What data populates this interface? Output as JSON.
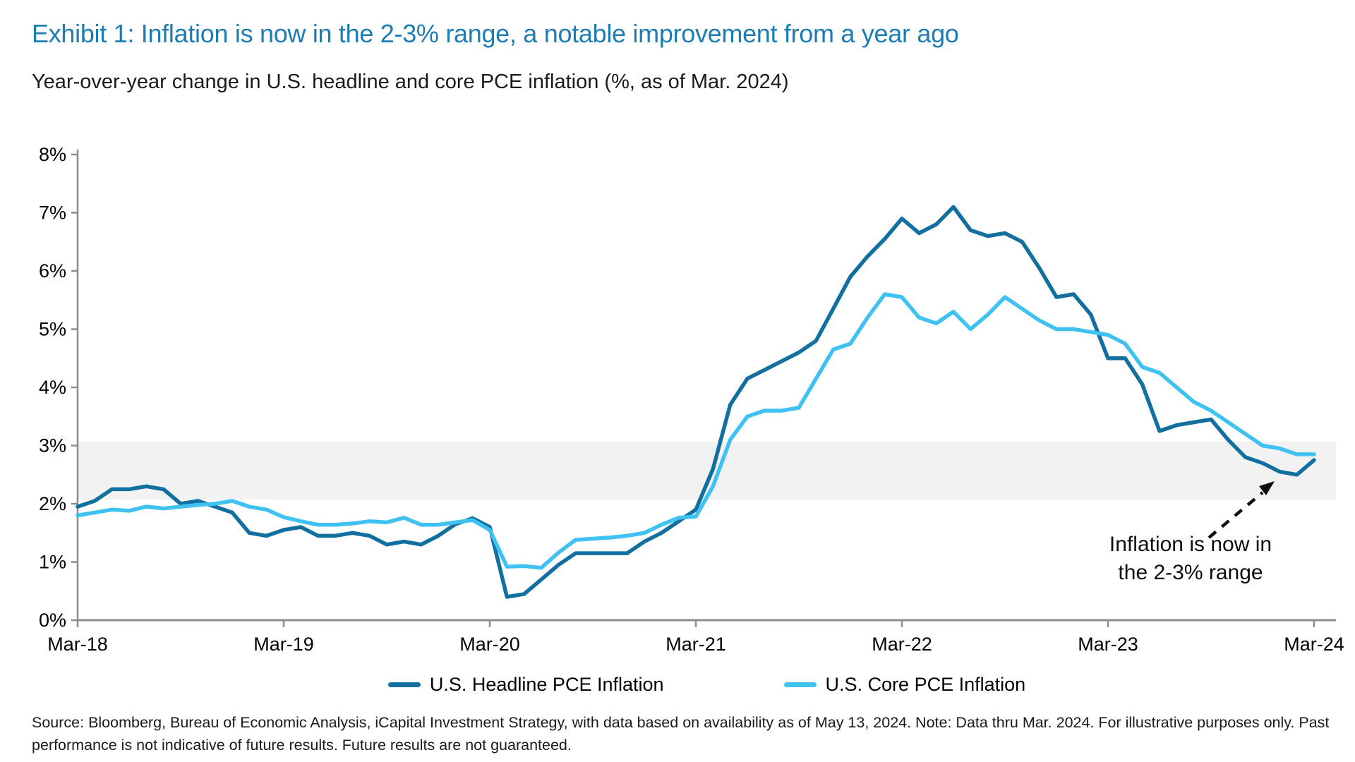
{
  "header": {
    "title": "Exhibit 1: Inflation is now in the 2-3% range, a notable improvement from a year ago",
    "subtitle": "Year-over-year change in U.S. headline and core PCE inflation (%, as of Mar. 2024)"
  },
  "chart_data": {
    "type": "line",
    "frequency": "monthly",
    "x_start": "Mar-2018",
    "x_end": "Mar-2024",
    "x_tick_labels": [
      "Mar-18",
      "Mar-19",
      "Mar-20",
      "Mar-21",
      "Mar-22",
      "Mar-23",
      "Mar-24"
    ],
    "y_tick_labels_top_down": [
      "8%",
      "7%",
      "6%",
      "5%",
      "4%",
      "3%",
      "2%",
      "1%",
      "0%"
    ],
    "ylim": [
      0,
      8
    ],
    "grid": false,
    "legend_position": "bottom",
    "highlight_band": {
      "label": "2-3% range",
      "from": 2.07,
      "to": 3.07,
      "color": "#f2f2f2"
    },
    "axis_color": "#8c8c8c",
    "series": [
      {
        "name": "U.S. Headline PCE Inflation",
        "color": "#1170a0",
        "values": [
          1.95,
          2.05,
          2.25,
          2.25,
          2.3,
          2.25,
          2.0,
          2.05,
          1.95,
          1.85,
          1.5,
          1.45,
          1.55,
          1.6,
          1.45,
          1.45,
          1.5,
          1.45,
          1.3,
          1.35,
          1.3,
          1.45,
          1.65,
          1.75,
          1.6,
          0.4,
          0.45,
          0.7,
          0.95,
          1.15,
          1.15,
          1.15,
          1.15,
          1.35,
          1.5,
          1.7,
          1.9,
          2.6,
          3.7,
          4.15,
          4.3,
          4.45,
          4.6,
          4.8,
          5.35,
          5.9,
          6.25,
          6.55,
          6.9,
          6.65,
          6.8,
          7.1,
          6.7,
          6.6,
          6.65,
          6.5,
          6.05,
          5.55,
          5.6,
          5.25,
          4.5,
          4.5,
          4.05,
          3.25,
          3.35,
          3.4,
          3.45,
          3.1,
          2.8,
          2.7,
          2.55,
          2.5,
          2.75
        ]
      },
      {
        "name": "U.S. Core PCE Inflation",
        "color": "#3fc1f2",
        "values": [
          1.8,
          1.85,
          1.9,
          1.88,
          1.95,
          1.92,
          1.95,
          1.98,
          2.0,
          2.05,
          1.95,
          1.9,
          1.77,
          1.7,
          1.64,
          1.64,
          1.66,
          1.7,
          1.68,
          1.76,
          1.64,
          1.64,
          1.68,
          1.72,
          1.55,
          0.92,
          0.93,
          0.9,
          1.16,
          1.38,
          1.4,
          1.42,
          1.45,
          1.5,
          1.64,
          1.76,
          1.78,
          2.3,
          3.1,
          3.5,
          3.6,
          3.6,
          3.65,
          4.15,
          4.65,
          4.75,
          5.2,
          5.6,
          5.55,
          5.2,
          5.1,
          5.3,
          5.0,
          5.25,
          5.55,
          5.35,
          5.15,
          5.0,
          5.0,
          4.95,
          4.9,
          4.75,
          4.35,
          4.25,
          4.0,
          3.75,
          3.6,
          3.4,
          3.2,
          3.0,
          2.95,
          2.85,
          2.85
        ]
      }
    ],
    "annotation": {
      "line1": "Inflation is now in",
      "line2": "the 2-3% range"
    }
  },
  "legend": {
    "items": [
      {
        "label": "U.S. Headline PCE Inflation",
        "color": "#1170a0"
      },
      {
        "label": "U.S. Core PCE Inflation",
        "color": "#3fc1f2"
      }
    ]
  },
  "footer": {
    "source_line1": "Source: Bloomberg, Bureau of Economic Analysis, iCapital Investment Strategy, with data based on availability as of May 13, 2024. Note: Data thru Mar. 2024. For illustrative purposes only. Past",
    "source_line2": "performance is not indicative of future results. Future results are not guaranteed."
  }
}
